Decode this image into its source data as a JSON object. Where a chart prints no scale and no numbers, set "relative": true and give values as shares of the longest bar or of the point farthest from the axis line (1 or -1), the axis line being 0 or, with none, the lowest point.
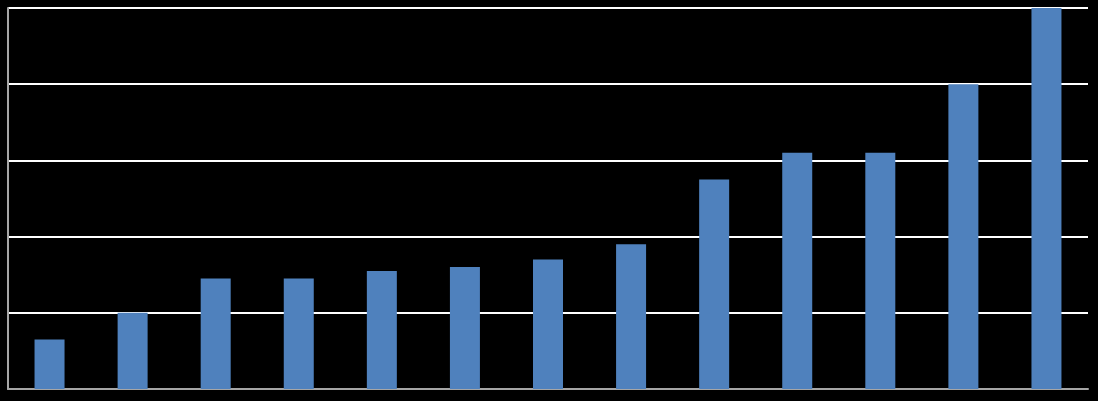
{
  "chart_data": {
    "type": "bar",
    "relative": true,
    "grid": true,
    "categories": [
      null,
      null,
      null,
      null,
      null,
      null,
      null,
      null,
      null,
      null,
      null,
      null,
      null
    ],
    "values": [
      0.13,
      0.2,
      0.29,
      0.29,
      0.31,
      0.32,
      0.34,
      0.38,
      0.55,
      0.62,
      0.62,
      0.8,
      1
    ],
    "color": "#4f81bd"
  }
}
